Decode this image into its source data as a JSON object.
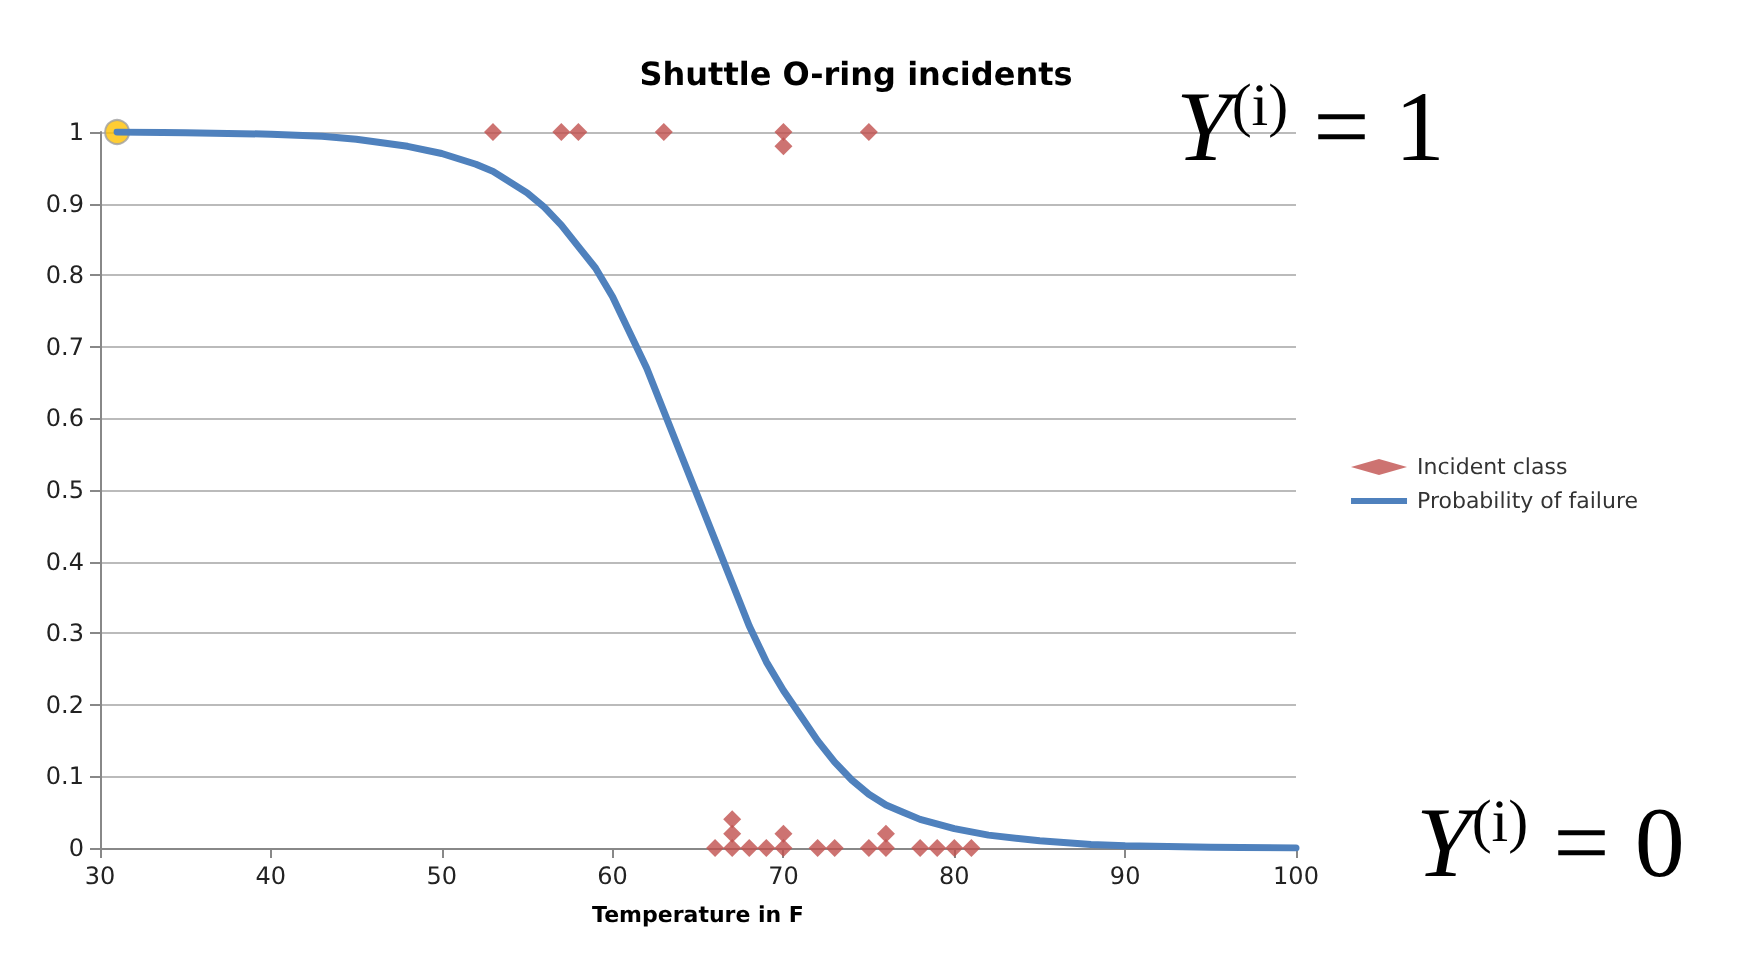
{
  "chart_data": {
    "type": "scatter",
    "title": "Shuttle O-ring incidents",
    "xlabel": "Temperature in F",
    "xlim": [
      30,
      100
    ],
    "xticks": [
      30,
      40,
      50,
      60,
      70,
      80,
      90,
      100
    ],
    "ylim": [
      0,
      1
    ],
    "yticks": [
      0,
      0.1,
      0.2,
      0.3,
      0.4,
      0.5,
      0.6,
      0.7,
      0.8,
      0.9,
      1
    ],
    "grid": "y",
    "legend": "right",
    "annotations": [
      "Y$^{(i)}$ = 1",
      "Y$^{(i)}$ = 0"
    ],
    "series": [
      {
        "name": "Incident class",
        "marker": "diamond",
        "color": "#c0504d",
        "x": [
          53,
          57,
          58,
          63,
          70,
          70,
          75,
          66,
          67,
          67,
          67,
          68,
          69,
          70,
          70,
          72,
          73,
          75,
          76,
          76,
          78,
          79,
          80,
          81
        ],
        "values": [
          1,
          1,
          1,
          1,
          1,
          0.98,
          1,
          0,
          0,
          0.02,
          0.04,
          0,
          0,
          0,
          0.02,
          0,
          0,
          0,
          0,
          0.02,
          0,
          0,
          0,
          0
        ]
      },
      {
        "name": "Probability of failure",
        "type": "line",
        "marker": "none",
        "color": "#4f81bd",
        "x": [
          31,
          35,
          40,
          43,
          45,
          48,
          50,
          52,
          53,
          54,
          55,
          56,
          57,
          58,
          59,
          60,
          61,
          62,
          63,
          64,
          65,
          66,
          67,
          68,
          69,
          70,
          71,
          72,
          73,
          74,
          75,
          76,
          77,
          78,
          80,
          82,
          85,
          88,
          90,
          95,
          100
        ],
        "values": [
          1,
          0.999,
          0.997,
          0.994,
          0.99,
          0.98,
          0.97,
          0.955,
          0.945,
          0.93,
          0.915,
          0.895,
          0.87,
          0.84,
          0.81,
          0.77,
          0.72,
          0.67,
          0.61,
          0.55,
          0.49,
          0.43,
          0.37,
          0.31,
          0.26,
          0.22,
          0.185,
          0.15,
          0.12,
          0.095,
          0.075,
          0.06,
          0.05,
          0.04,
          0.027,
          0.018,
          0.01,
          0.005,
          0.003,
          0.001,
          0
        ]
      },
      {
        "marker": "circle",
        "color": "#ffc000",
        "x": [
          31
        ],
        "values": [
          1
        ]
      }
    ]
  }
}
